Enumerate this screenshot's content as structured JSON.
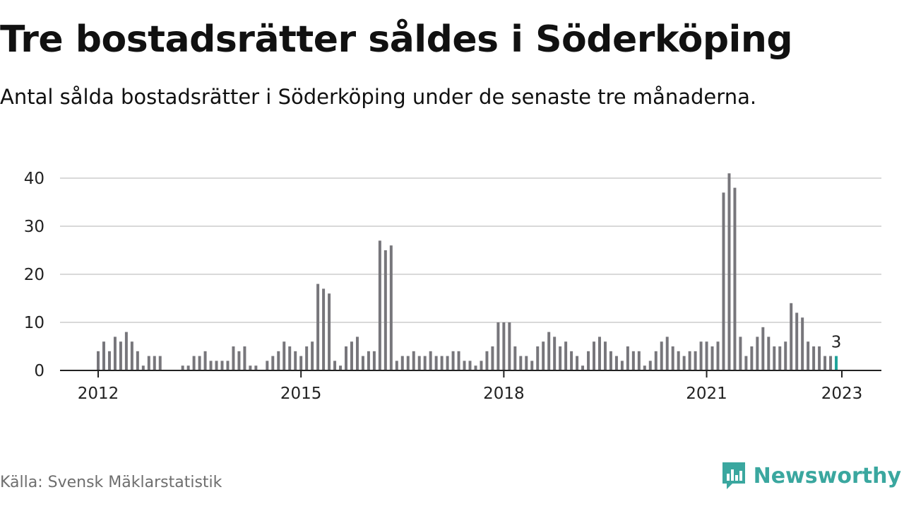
{
  "title": "Tre bostadsrätter såldes i Söderköping",
  "subtitle": "Antal sålda bostadsrätter i Söderköping under de senaste tre månaderna.",
  "source": "Källa: Svensk Mäklarstatistik",
  "brand": {
    "name": "Newsworthy",
    "icon": "bar-chart-logo-icon",
    "color": "#3aa79f"
  },
  "colors": {
    "bar": "#77767b",
    "highlight": "#1fa39a",
    "grid": "#d9d9d9",
    "axis": "#222222"
  },
  "chart_data": {
    "type": "bar",
    "x_start": "2012-01",
    "x_end": "2023-01",
    "xticks": [
      "2012",
      "2015",
      "2018",
      "2021",
      "2023"
    ],
    "yticks": [
      0,
      10,
      20,
      30,
      40
    ],
    "ylim": [
      0,
      41
    ],
    "grid": true,
    "highlight_label": "3",
    "series": [
      {
        "values": [
          4,
          6,
          4,
          7,
          6,
          8,
          6,
          4,
          1,
          3,
          3,
          3,
          null,
          null,
          null,
          1,
          1,
          3,
          3,
          4,
          2,
          2,
          2,
          2,
          5,
          4,
          5,
          1,
          1,
          null,
          2,
          3,
          4,
          6,
          5,
          4,
          3,
          5,
          6,
          18,
          17,
          16,
          2,
          1,
          5,
          6,
          7,
          3,
          4,
          4,
          27,
          25,
          26,
          2,
          3,
          3,
          4,
          3,
          3,
          4,
          3,
          3,
          3,
          4,
          4,
          2,
          2,
          1,
          2,
          4,
          5,
          10,
          10,
          10,
          5,
          3,
          3,
          2,
          5,
          6,
          8,
          7,
          5,
          6,
          4,
          3,
          1,
          4,
          6,
          7,
          6,
          4,
          3,
          2,
          5,
          4,
          4,
          1,
          2,
          4,
          6,
          7,
          5,
          4,
          3,
          4,
          4,
          6,
          6,
          5,
          6,
          37,
          41,
          38,
          7,
          3,
          5,
          7,
          9,
          7,
          5,
          5,
          6,
          14,
          12,
          11,
          6,
          5,
          5,
          3,
          3,
          3
        ]
      }
    ]
  }
}
